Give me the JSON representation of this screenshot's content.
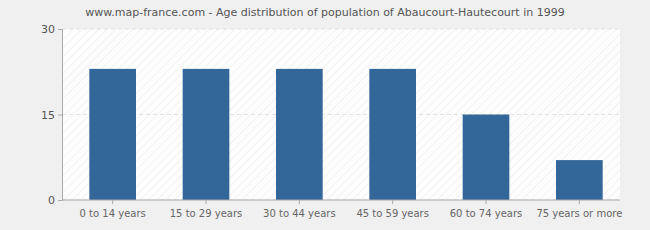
{
  "chart_data": {
    "type": "bar",
    "title": "www.map-france.com - Age distribution of population of Abaucourt-Hautecourt in 1999",
    "categories": [
      "0 to 14 years",
      "15 to 29 years",
      "30 to 44 years",
      "45 to 59 years",
      "60 to 74 years",
      "75 years or more"
    ],
    "values": [
      23,
      23,
      23,
      23,
      15,
      7
    ],
    "color": "#336699",
    "ylim": [
      0,
      30
    ],
    "yticks": [
      0,
      15,
      30
    ],
    "grid": true
  }
}
